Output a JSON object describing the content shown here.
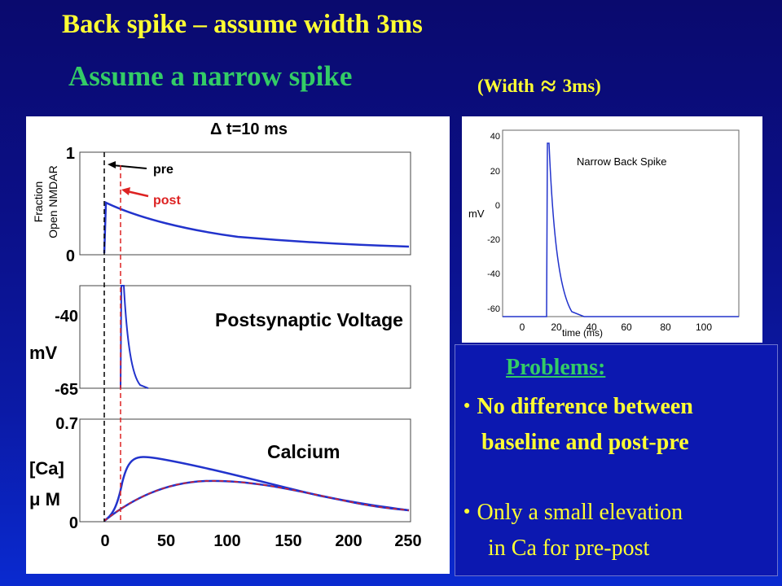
{
  "slide": {
    "title": "Back spike – assume width 3ms",
    "subtitle": "Assume a narrow spike",
    "width_note": {
      "prefix": "(Width",
      "approx": "≈",
      "suffix": "3ms)"
    },
    "colors": {
      "title": "#ffff33",
      "subtitle": "#33cc66",
      "curve": "#2233cc",
      "post": "#dd2222"
    }
  },
  "left_figure": {
    "top_label": "Δ t=10 ms",
    "panel1": {
      "ylabel_line1": "Fraction",
      "ylabel_line2": "Open NMDAR",
      "ytick_top": "1",
      "ytick_bottom": "0",
      "pre_label": "pre",
      "post_label": "post"
    },
    "panel2": {
      "title": "Postsynaptic Voltage",
      "ylabel": "mV",
      "ytick_top": "-40",
      "ytick_bottom": "-65"
    },
    "panel3": {
      "title": "Calcium",
      "ylabel_line1": "[Ca]",
      "ylabel_line2": "μ M",
      "ytick_top": "0.7",
      "ytick_bottom": "0"
    },
    "xticks": [
      "0",
      "50",
      "100",
      "150",
      "200",
      "250"
    ]
  },
  "right_figure": {
    "title": "Narrow Back Spike",
    "ylabel": "mV",
    "xlabel": "time (ms)",
    "yticks": [
      "40",
      "20",
      "0",
      "-20",
      "-40",
      "-60"
    ],
    "xticks": [
      "0",
      "20",
      "40",
      "60",
      "80",
      "100"
    ]
  },
  "problems": {
    "title": "Problems:",
    "bullet1_line1": "No difference between",
    "bullet1_line2": "baseline and post-pre",
    "bullet2_line1": "Only a small elevation",
    "bullet2_line2": "in Ca for pre-post"
  }
}
